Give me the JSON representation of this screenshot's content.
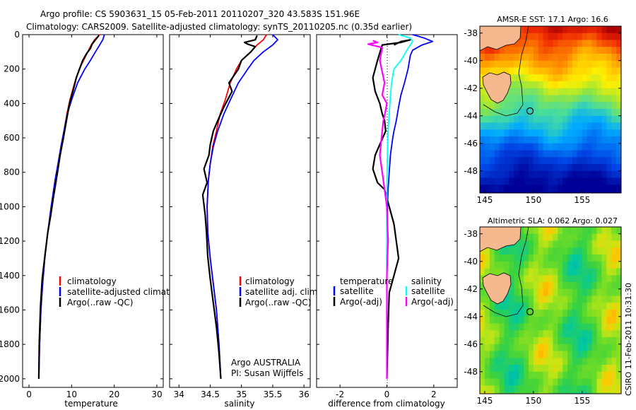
{
  "title": {
    "line1": "Argo profile: CS 5903631_15 05-Feb-2011 20110207_320 43.583S 151.96E",
    "line2": "Climatology: CARS2009. Satellite-adjusted climatology: synTS_20110205.nc (0.35d earlier)"
  },
  "credit": "CSIRO 11-Feb-2011 10:31:30",
  "colors": {
    "climatology": "#ff0000",
    "satellite": "#0000ff",
    "argo": "#000000",
    "cyan": "#00ffff",
    "magenta": "#ff00ff"
  },
  "chart_data": [
    {
      "type": "line",
      "id": "temperature",
      "xlabel": "temperature",
      "ylabel": "",
      "xlim": [
        -1.5,
        31.5
      ],
      "ylim": [
        2050,
        0
      ],
      "xticks": [
        "0",
        "10",
        "20",
        "30"
      ],
      "yticks": [
        "0",
        "200",
        "400",
        "600",
        "800",
        "1000",
        "1200",
        "1400",
        "1600",
        "1800",
        "2000"
      ],
      "legend": [
        "climatology",
        "satellite-adjusted climatology",
        "Argo(..raw -QC)"
      ],
      "series": [
        {
          "name": "climatology",
          "color": "#ff0000",
          "x": [
            16.6,
            15.4,
            14.6,
            13.8,
            12.8,
            11.8,
            10.7,
            9.6,
            8.9,
            8.2,
            7.5,
            6.8,
            6.1,
            5.2,
            4.4,
            3.7,
            3.2,
            2.8,
            2.5,
            2.3
          ],
          "y": [
            0,
            30,
            60,
            100,
            150,
            200,
            280,
            380,
            460,
            560,
            650,
            750,
            850,
            1000,
            1150,
            1300,
            1450,
            1600,
            1800,
            2000
          ]
        },
        {
          "name": "satellite-adjusted climatology",
          "color": "#0000ff",
          "x": [
            17.7,
            17.3,
            16.6,
            15.6,
            14.4,
            13.1,
            11.4,
            10.0,
            9.0,
            8.2,
            7.5,
            6.8,
            6.1,
            5.2,
            4.4,
            3.7,
            3.2,
            2.8,
            2.5,
            2.3
          ],
          "y": [
            0,
            30,
            60,
            100,
            150,
            200,
            280,
            380,
            460,
            560,
            650,
            750,
            850,
            1000,
            1150,
            1300,
            1450,
            1600,
            1800,
            2000
          ]
        },
        {
          "name": "Argo(..raw -QC)",
          "color": "#000000",
          "x": [
            16.4,
            15.6,
            14.8,
            14.4,
            13.5,
            12.6,
            11.7,
            11.1,
            10.4,
            9.5,
            9.0,
            8.5,
            8.0,
            7.3,
            6.8,
            6.3,
            5.7,
            5.1,
            4.4,
            3.7,
            3.1,
            2.7,
            2.4,
            2.3
          ],
          "y": [
            5,
            30,
            55,
            80,
            110,
            150,
            210,
            250,
            320,
            400,
            470,
            540,
            610,
            700,
            780,
            860,
            950,
            1050,
            1150,
            1290,
            1420,
            1580,
            1800,
            2000
          ]
        }
      ]
    },
    {
      "type": "line",
      "id": "salinity",
      "xlabel": "salinity",
      "ylabel": "",
      "xlim": [
        33.85,
        36.1
      ],
      "ylim": [
        2050,
        0
      ],
      "xticks": [
        "34",
        "34.5",
        "35",
        "35.5",
        "36"
      ],
      "legend": [
        "climatology",
        "satellite adj. clim.",
        "Argo(..raw -QC)"
      ],
      "annotation": [
        "Argo AUSTRALIA",
        "PI: Susan Wijffels"
      ],
      "series": [
        {
          "name": "climatology",
          "color": "#ff0000",
          "x": [
            35.4,
            35.35,
            35.25,
            35.15,
            35.0,
            34.92,
            34.82,
            34.74,
            34.66,
            34.6,
            34.54,
            34.5,
            34.47,
            34.45,
            34.46,
            34.5,
            34.55,
            34.6,
            34.64,
            34.67
          ],
          "y": [
            0,
            30,
            60,
            100,
            150,
            200,
            280,
            380,
            460,
            560,
            650,
            750,
            850,
            1000,
            1150,
            1300,
            1450,
            1600,
            1800,
            2000
          ]
        },
        {
          "name": "satellite adj. clim.",
          "color": "#0000ff",
          "x": [
            35.5,
            35.58,
            35.5,
            35.35,
            35.2,
            35.1,
            34.95,
            34.82,
            34.72,
            34.62,
            34.55,
            34.5,
            34.47,
            34.45,
            34.46,
            34.5,
            34.55,
            34.6,
            34.64,
            34.67
          ],
          "y": [
            0,
            30,
            60,
            100,
            150,
            200,
            280,
            380,
            460,
            560,
            650,
            750,
            850,
            1000,
            1150,
            1300,
            1450,
            1600,
            1800,
            2000
          ]
        },
        {
          "name": "Argo(..raw -QC)",
          "color": "#000000",
          "x": [
            35.25,
            35.22,
            35.05,
            35.1,
            35.22,
            35.15,
            35.0,
            34.95,
            34.8,
            34.85,
            34.72,
            34.62,
            34.55,
            34.5,
            34.48,
            34.4,
            34.45,
            34.38,
            34.42,
            34.44,
            34.46,
            34.5,
            34.55,
            34.6,
            34.64,
            34.67
          ],
          "y": [
            5,
            30,
            45,
            55,
            70,
            100,
            150,
            200,
            280,
            330,
            420,
            500,
            560,
            640,
            700,
            780,
            860,
            930,
            1050,
            1150,
            1290,
            1420,
            1560,
            1700,
            1850,
            2000
          ]
        }
      ]
    },
    {
      "type": "line",
      "id": "difference",
      "xlabel": "difference from climatology",
      "ylabel": "",
      "xlim": [
        -3.0,
        3.0
      ],
      "ylim": [
        2050,
        0
      ],
      "xticks": [
        "-2",
        "0",
        "2"
      ],
      "legend_left": {
        "header": "temperature",
        "items": [
          "satellite",
          "Argo(-adj)"
        ]
      },
      "legend_right": {
        "header": "salinity",
        "items": [
          "satellite",
          "Argo(-adj)"
        ]
      },
      "series": [
        {
          "name": "temperature satellite",
          "color": "#0000ff",
          "x": [
            1.1,
            1.6,
            1.95,
            1.5,
            1.1,
            1.0,
            0.9,
            0.75,
            0.6,
            0.5,
            0.4,
            0.3,
            0.25,
            0.2,
            0.15,
            0.1,
            0.05,
            0.02,
            0.0,
            0.0
          ],
          "y": [
            0,
            20,
            40,
            60,
            90,
            120,
            200,
            280,
            350,
            420,
            500,
            560,
            600,
            650,
            700,
            800,
            900,
            1000,
            1200,
            2000
          ]
        },
        {
          "name": "temperature Argo(-adj)",
          "color": "#000000",
          "x": [
            0.3,
            0.6,
            1.0,
            0.6,
            -0.2,
            -0.4,
            -0.6,
            -0.5,
            -0.3,
            -0.2,
            -0.1,
            -0.05,
            -0.5,
            -0.6,
            -0.4,
            -0.1,
            0.0,
            0.1,
            0.3,
            0.4,
            0.5,
            0.3,
            0.1,
            0.05,
            0.0
          ],
          "y": [
            60,
            40,
            30,
            45,
            60,
            150,
            250,
            330,
            400,
            460,
            500,
            560,
            700,
            780,
            860,
            900,
            950,
            1000,
            1100,
            1200,
            1300,
            1400,
            1500,
            1700,
            2000
          ]
        },
        {
          "name": "salinity satellite",
          "color": "#00ffff",
          "x": [
            0.5,
            1.0,
            1.1,
            0.9,
            0.6,
            0.3,
            0.2,
            0.15,
            0.1,
            0.05,
            0.02,
            0.0,
            0.0,
            0.0
          ],
          "y": [
            0,
            20,
            40,
            80,
            150,
            200,
            280,
            360,
            460,
            560,
            700,
            900,
            1200,
            2000
          ]
        },
        {
          "name": "salinity Argo(-adj)",
          "color": "#ff00ff",
          "x": [
            -0.6,
            -0.4,
            -0.8,
            -0.2,
            -0.3,
            -0.1,
            -0.2,
            0.0,
            -0.1,
            -0.15,
            -0.2,
            -0.3,
            -0.2,
            0.0,
            0.02,
            0.05,
            0.02,
            0.0,
            0.0,
            0.0
          ],
          "y": [
            35,
            45,
            55,
            75,
            150,
            280,
            350,
            400,
            470,
            500,
            560,
            700,
            800,
            1000,
            1100,
            1200,
            1300,
            1400,
            1700,
            2000
          ]
        }
      ]
    },
    {
      "type": "heatmap",
      "id": "sst",
      "title": "AMSR-E SST: 17.1 Argo: 16.6",
      "xlim": [
        144.5,
        159
      ],
      "ylim": [
        -49.6,
        -37.5
      ],
      "xticks": [
        "145",
        "150",
        "155"
      ],
      "yticks": [
        "-38",
        "-40",
        "-42",
        "-44",
        "-46",
        "-48"
      ],
      "float_position": {
        "lon": 151.96,
        "lat": -43.58
      }
    },
    {
      "type": "heatmap",
      "id": "sla",
      "title": "Altimetric SLA: 0.062 Argo: 0.027",
      "xlim": [
        144.5,
        159
      ],
      "ylim": [
        -49.6,
        -37.5
      ],
      "xticks": [
        "145",
        "150",
        "155"
      ],
      "yticks": [
        "-38",
        "-40",
        "-42",
        "-44",
        "-46",
        "-48"
      ],
      "float_position": {
        "lon": 151.96,
        "lat": -43.58
      }
    }
  ]
}
